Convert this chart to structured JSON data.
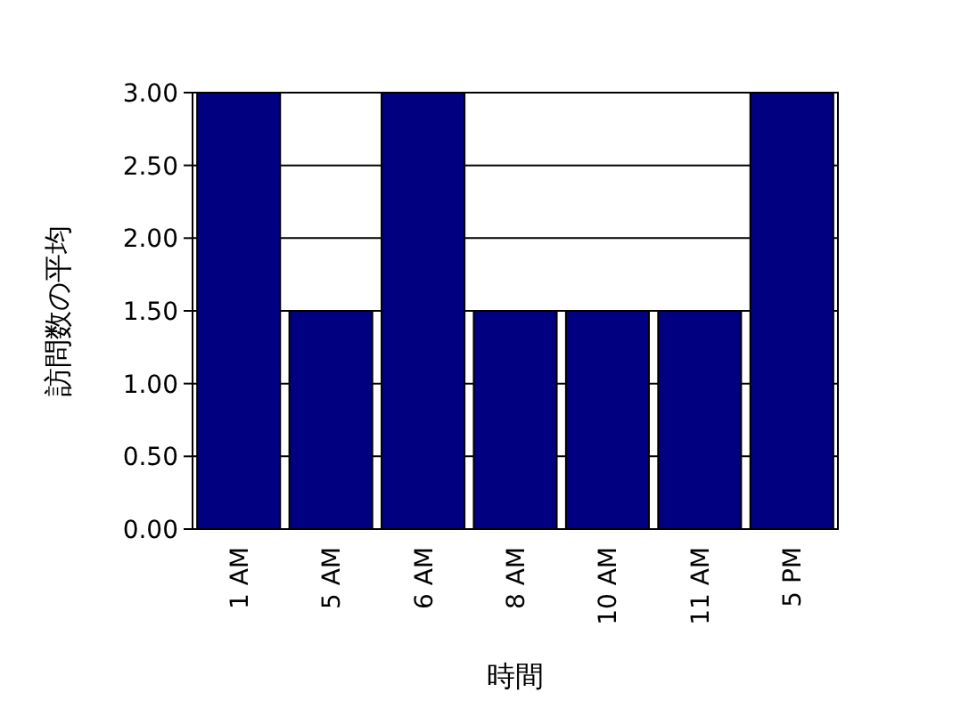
{
  "chart_data": {
    "type": "bar",
    "xlabel": "時間",
    "ylabel": "訪問数の平均",
    "categories": [
      "1 AM",
      "5 AM",
      "6 AM",
      "8 AM",
      "10 AM",
      "11 AM",
      "5 PM"
    ],
    "values": [
      3,
      1.5,
      3,
      1.5,
      1.5,
      1.5,
      3
    ],
    "color": "#000080",
    "ylim": [
      0,
      3
    ],
    "yticks": [
      {
        "value": 0,
        "label": "0.00"
      },
      {
        "value": 0.5,
        "label": "0.50"
      },
      {
        "value": 1,
        "label": "1.00"
      },
      {
        "value": 1.5,
        "label": "1.50"
      },
      {
        "value": 2,
        "label": "2.00"
      },
      {
        "value": 2.5,
        "label": "2.50"
      },
      {
        "value": 3,
        "label": "3.00"
      }
    ],
    "grid": "y"
  }
}
